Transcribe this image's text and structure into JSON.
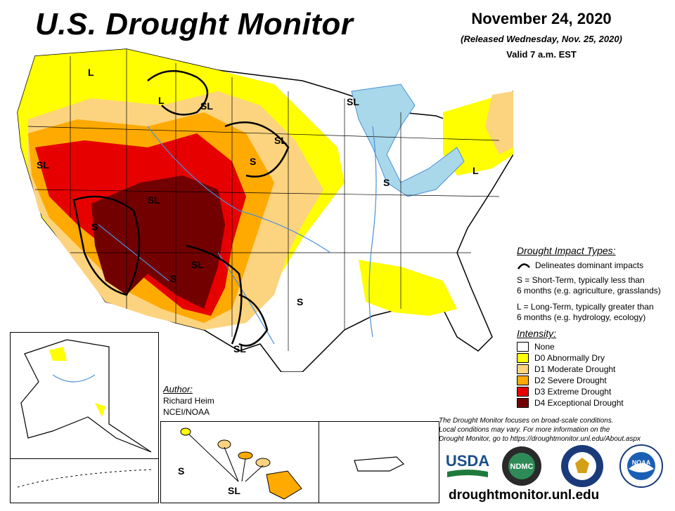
{
  "header": {
    "title": "U.S. Drought Monitor",
    "date": "November 24, 2020",
    "released": "(Released Wednesday, Nov. 25, 2020)",
    "valid": "Valid 7 a.m. EST"
  },
  "map_labels": {
    "l_nw": "L",
    "l_mt": "L",
    "sl_mt": "SL",
    "sl_or": "SL",
    "sl_dak": "SL",
    "sl_mn": "SL",
    "s_ne": "S",
    "sl_co": "SL",
    "s_az": "S",
    "s_ia": "S",
    "sl_nm": "SL",
    "s_nm": "S",
    "s_tx": "S",
    "sl_tx": "SL",
    "l_pa": "L",
    "sl_me": "SL",
    "l_nw2": "L",
    "s_hi": "S",
    "sl_hi": "SL"
  },
  "impact": {
    "heading": "Drought Impact Types:",
    "delineates": "Delineates dominant impacts",
    "s_line1": "S = Short-Term, typically less than",
    "s_line2": "6 months (e.g. agriculture, grasslands)",
    "l_line1": "L = Long-Term, typically greater than",
    "l_line2": "6 months (e.g. hydrology, ecology)"
  },
  "intensity": {
    "heading": "Intensity:",
    "levels": [
      {
        "label": "None",
        "color": "#ffffff"
      },
      {
        "label": "D0 Abnormally Dry",
        "color": "#ffff00"
      },
      {
        "label": "D1 Moderate Drought",
        "color": "#fcd37f"
      },
      {
        "label": "D2 Severe Drought",
        "color": "#ffaa00"
      },
      {
        "label": "D3 Extreme Drought",
        "color": "#e60000"
      },
      {
        "label": "D4 Exceptional Drought",
        "color": "#730000"
      }
    ]
  },
  "author": {
    "heading": "Author:",
    "name": "Richard Heim",
    "org": "NCEI/NOAA"
  },
  "note": {
    "line1": "The Drought Monitor focuses on broad-scale conditions.",
    "line2": "Local conditions may vary. For more information on the",
    "line3": "Drought Monitor, go to https://droughtmonitor.unl.edu/About.aspx"
  },
  "logos": {
    "usda": "USDA",
    "ndmc": "NDMC",
    "noaa": "NOAA"
  },
  "footer": {
    "url": "droughtmonitor.unl.edu"
  },
  "colors": {
    "d0": "#ffff00",
    "d1": "#fcd37f",
    "d2": "#ffaa00",
    "d3": "#e60000",
    "d4": "#730000",
    "water": "#a8d8ea",
    "river": "#4a90d9"
  }
}
